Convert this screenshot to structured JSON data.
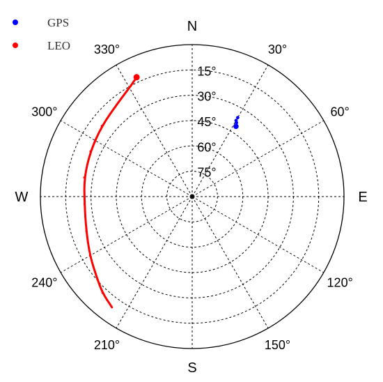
{
  "chart_data": {
    "type": "scatter",
    "projection": "polar-skyplot",
    "title": "",
    "azimuth_ticks": [
      {
        "az": 0,
        "label": "N"
      },
      {
        "az": 30,
        "label": "30°"
      },
      {
        "az": 60,
        "label": "60°"
      },
      {
        "az": 90,
        "label": "E"
      },
      {
        "az": 120,
        "label": "120°"
      },
      {
        "az": 150,
        "label": "150°"
      },
      {
        "az": 180,
        "label": "S"
      },
      {
        "az": 210,
        "label": "210°"
      },
      {
        "az": 240,
        "label": "240°"
      },
      {
        "az": 270,
        "label": "W"
      },
      {
        "az": 300,
        "label": "300°"
      },
      {
        "az": 330,
        "label": "330°"
      }
    ],
    "elevation_ticks": [
      {
        "el": 15,
        "label": "15°"
      },
      {
        "el": 30,
        "label": "30°"
      },
      {
        "el": 45,
        "label": "45°"
      },
      {
        "el": 60,
        "label": "60°"
      },
      {
        "el": 75,
        "label": "75°"
      }
    ],
    "elevation_range": [
      0,
      90
    ],
    "grid": true,
    "legend_position": "top-left",
    "series": [
      {
        "name": "GPS",
        "color": "#0000ff",
        "mode": "markers",
        "points": [
          {
            "az": 30,
            "el": 36
          },
          {
            "az": 30,
            "el": 38
          },
          {
            "az": 31,
            "el": 39
          },
          {
            "az": 32,
            "el": 41
          }
        ]
      },
      {
        "name": "LEO",
        "color": "#ff0000",
        "mode": "line",
        "start_marker": true,
        "points": [
          {
            "az": 335,
            "el": 12
          },
          {
            "az": 331,
            "el": 15
          },
          {
            "az": 322,
            "el": 19
          },
          {
            "az": 308,
            "el": 22
          },
          {
            "az": 294,
            "el": 24
          },
          {
            "az": 280,
            "el": 25
          },
          {
            "az": 266,
            "el": 26
          },
          {
            "az": 252,
            "el": 24
          },
          {
            "az": 240,
            "el": 20
          },
          {
            "az": 230,
            "el": 16
          },
          {
            "az": 223,
            "el": 12
          },
          {
            "az": 216,
            "el": 9
          }
        ]
      }
    ]
  }
}
